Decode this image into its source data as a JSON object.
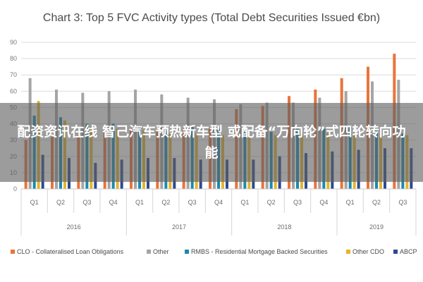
{
  "chart_data": {
    "type": "bar",
    "title": "Chart 3: Top 5 FVC Activity types (Total Debt Securities Issued €bn)",
    "ylim": [
      0,
      90
    ],
    "yticks": [
      "0",
      "10",
      "20",
      "30",
      "40",
      "50",
      "60",
      "70",
      "80",
      "90"
    ],
    "grid": true,
    "legend_position": "bottom",
    "categories": [
      "Q1",
      "Q2",
      "Q3",
      "Q4",
      "Q1",
      "Q2",
      "Q3",
      "Q4",
      "Q1",
      "Q2",
      "Q3",
      "Q4",
      "Q1",
      "Q2",
      "Q3"
    ],
    "years": [
      {
        "label": "2016",
        "quarters": 4
      },
      {
        "label": "2017",
        "quarters": 4
      },
      {
        "label": "2018",
        "quarters": 4
      },
      {
        "label": "2019",
        "quarters": 3
      }
    ],
    "series": [
      {
        "name": "CLO - Collateralised Loan Obligations",
        "color": "#e8743b",
        "values": [
          30,
          32,
          33,
          35,
          36,
          35,
          36,
          37,
          49,
          51,
          57,
          61,
          68,
          75,
          83
        ]
      },
      {
        "name": "Other",
        "color": "#a5a5a5",
        "values": [
          68,
          61,
          59,
          60,
          61,
          58,
          56,
          55,
          52,
          53,
          53,
          56,
          60,
          66,
          67
        ]
      },
      {
        "name": "RMBS - Residential Mortgage Backed Securities",
        "color": "#1a8aad",
        "values": [
          45,
          44,
          40,
          40,
          38,
          36,
          38,
          37,
          36,
          35,
          37,
          37,
          38,
          36,
          34
        ]
      },
      {
        "name": "Other CDO",
        "color": "#e5b52d",
        "values": [
          54,
          42,
          38,
          37,
          36,
          34,
          34,
          33,
          32,
          33,
          34,
          34,
          33,
          32,
          33
        ]
      },
      {
        "name": "ABCP",
        "color": "#2c4a8f",
        "values": [
          21,
          19,
          16,
          18,
          19,
          19,
          18,
          18,
          18,
          20,
          22,
          23,
          24,
          25,
          25
        ]
      }
    ]
  },
  "overlay": {
    "text": "配资资讯在线 智己汽车预热新车型 或配备“万向轮”式四轮转向功能"
  }
}
